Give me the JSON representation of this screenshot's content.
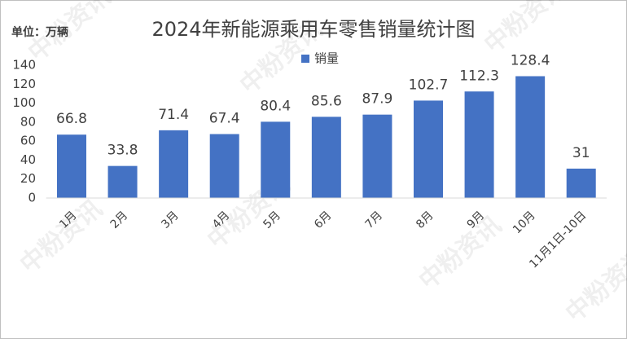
{
  "chart_data": {
    "type": "bar",
    "title": "2024年新能源乘用车零售销量统计图",
    "unit_label": "单位：万辆",
    "watermark": "中粉资讯",
    "categories": [
      "1月",
      "2月",
      "3月",
      "4月",
      "5月",
      "6月",
      "7月",
      "8月",
      "9月",
      "10月",
      "11月1日-10日"
    ],
    "series": [
      {
        "name": "销量",
        "color": "#4472c4",
        "values": [
          66.8,
          33.8,
          71.4,
          67.4,
          80.4,
          85.6,
          87.9,
          102.7,
          112.3,
          128.4,
          31
        ]
      }
    ],
    "ylim": [
      0,
      140
    ],
    "yticks": [
      0,
      20,
      40,
      60,
      80,
      100,
      120,
      140
    ],
    "grid": false,
    "legend": "top"
  }
}
